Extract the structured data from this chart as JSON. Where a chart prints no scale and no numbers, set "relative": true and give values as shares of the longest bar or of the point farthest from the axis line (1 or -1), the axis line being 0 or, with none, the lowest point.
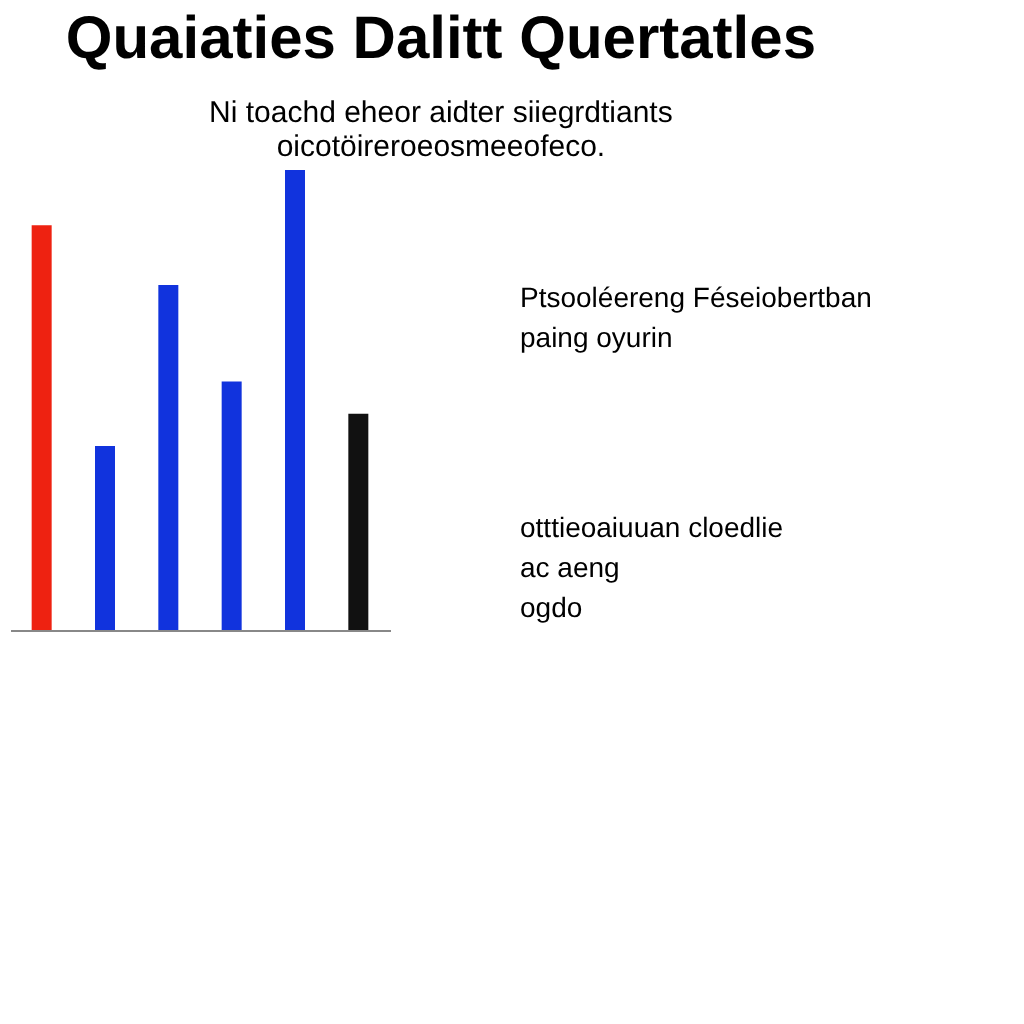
{
  "chart_data": {
    "type": "bar",
    "relative": true,
    "title": "Quaiaties Dalitt Quertatles",
    "subtitle": [
      "Ni toachd eheor aidter siiegrdtiants",
      "oicotöireroeosmeeofeco."
    ],
    "categories": [
      null,
      null,
      null,
      null,
      null,
      null
    ],
    "values": [
      0.88,
      0.4,
      0.75,
      0.54,
      1,
      0.47
    ],
    "colors": [
      "#ee2211",
      "#1133dd",
      "#1133dd",
      "#1133dd",
      "#1133dd",
      "#111111"
    ],
    "annotations": [
      "Ptsooléereng Féseiobertban paing oyurin",
      "otttieoaiuuan cloedlie ac aeng ogdo"
    ],
    "grid": false
  }
}
